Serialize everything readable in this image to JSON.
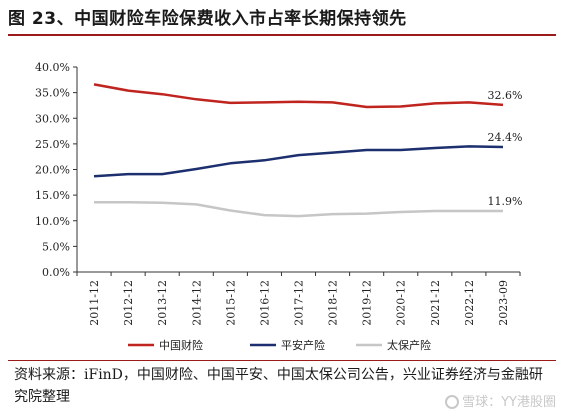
{
  "title": "图 23、中国财险车险保费收入市占率长期保持领先",
  "source": "资料来源：iFinD，中国财险、中国平安、中国太保公司公告，兴业证券经济与金融研究院整理",
  "watermark": "雪球：YY港股圈",
  "chart_data": {
    "type": "line",
    "categories": [
      "2011-12",
      "2012-12",
      "2013-12",
      "2014-12",
      "2015-12",
      "2016-12",
      "2017-12",
      "2018-12",
      "2019-12",
      "2020-12",
      "2021-12",
      "2022-12",
      "2023-09"
    ],
    "y_tick_labels": [
      "0.0%",
      "5.0%",
      "10.0%",
      "15.0%",
      "20.0%",
      "25.0%",
      "30.0%",
      "35.0%",
      "40.0%"
    ],
    "ylim": [
      0,
      40
    ],
    "y_unit": "%",
    "grid": false,
    "legend_position": "bottom",
    "series": [
      {
        "name": "中国财险",
        "color": "#c0241f",
        "values": [
          36.6,
          35.4,
          34.7,
          33.7,
          33.0,
          33.1,
          33.2,
          33.1,
          32.2,
          32.3,
          32.9,
          33.1,
          32.6
        ],
        "end_label": "32.6%"
      },
      {
        "name": "平安产险",
        "color": "#1c2f6e",
        "values": [
          18.7,
          19.1,
          19.1,
          20.1,
          21.2,
          21.8,
          22.8,
          23.3,
          23.8,
          23.8,
          24.2,
          24.5,
          24.4
        ],
        "end_label": "24.4%"
      },
      {
        "name": "太保产险",
        "color": "#c6c6c6",
        "values": [
          13.6,
          13.6,
          13.5,
          13.2,
          12.0,
          11.1,
          10.9,
          11.3,
          11.4,
          11.7,
          11.9,
          11.9,
          11.9
        ],
        "end_label": "11.9%"
      }
    ]
  }
}
